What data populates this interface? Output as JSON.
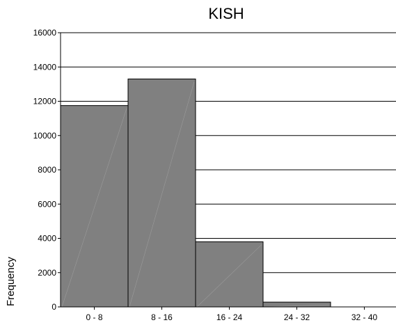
{
  "chart_data": {
    "type": "bar",
    "title": "KISH",
    "xlabel": "",
    "ylabel": "Frequency",
    "categories": [
      "0 - 8",
      "8 - 16",
      "16 - 24",
      "24 - 32",
      "32 - 40"
    ],
    "values": [
      11750,
      13300,
      3800,
      280,
      0
    ],
    "ylim": [
      0,
      16000
    ],
    "yticks": [
      0,
      2000,
      4000,
      6000,
      8000,
      10000,
      12000,
      14000,
      16000
    ],
    "grid": true,
    "legend": "none",
    "colors": {
      "bar": "#808080",
      "bar_edge": "#000000",
      "grid": "#000000"
    }
  }
}
